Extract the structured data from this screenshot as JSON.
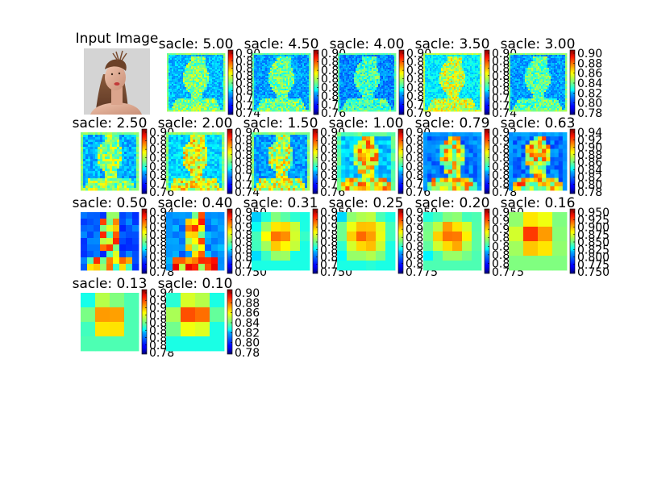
{
  "figure": {
    "input_title": "Input Image",
    "input_subject": "portrait photo of a woman with hair tied up, looking upward"
  },
  "chart_data": {
    "type": "heatmap",
    "colormap": "jet",
    "background": "#ffffff",
    "panels": [
      {
        "title": "sacle: 5.00",
        "colorbar_ticks": [
          "0.90",
          "0.88",
          "0.86",
          "0.84",
          "0.82",
          "0.80",
          "0.78",
          "0.76",
          "0.74"
        ],
        "pattern": "fine",
        "base": 0.25,
        "features": 0.62,
        "frame": 0.55
      },
      {
        "title": "sacle: 4.50",
        "colorbar_ticks": [
          "0.90",
          "0.88",
          "0.86",
          "0.84",
          "0.82",
          "0.80",
          "0.78",
          "0.76"
        ],
        "pattern": "fine",
        "base": 0.22,
        "features": 0.6,
        "frame": 0.5
      },
      {
        "title": "sacle: 4.00",
        "colorbar_ticks": [
          "0.90",
          "0.88",
          "0.86",
          "0.84",
          "0.82",
          "0.80",
          "0.78",
          "0.76"
        ],
        "pattern": "fine",
        "base": 0.2,
        "features": 0.55,
        "frame": 0.5
      },
      {
        "title": "sacle: 3.50",
        "colorbar_ticks": [
          "0.90",
          "0.88",
          "0.86",
          "0.84",
          "0.82",
          "0.80",
          "0.78",
          "0.76",
          "0.74"
        ],
        "pattern": "fine",
        "base": 0.3,
        "features": 0.7,
        "frame": 0.6
      },
      {
        "title": "sacle: 3.00",
        "colorbar_ticks": [
          "0.90",
          "0.88",
          "0.86",
          "0.84",
          "0.82",
          "0.80",
          "0.78"
        ],
        "pattern": "fine",
        "base": 0.22,
        "features": 0.58,
        "frame": 0.55
      },
      {
        "title": "sacle: 2.50",
        "colorbar_ticks": [
          "0.90",
          "0.88",
          "0.86",
          "0.84",
          "0.82",
          "0.80",
          "0.78",
          "0.76"
        ],
        "pattern": "medium",
        "base": 0.24,
        "features": 0.65,
        "frame": 0.55
      },
      {
        "title": "sacle: 2.00",
        "colorbar_ticks": [
          "0.90",
          "0.88",
          "0.86",
          "0.84",
          "0.82",
          "0.80",
          "0.78",
          "0.76",
          "0.74"
        ],
        "pattern": "medium",
        "base": 0.28,
        "features": 0.75,
        "frame": 0.55
      },
      {
        "title": "sacle: 1.50",
        "colorbar_ticks": [
          "0.90",
          "0.88",
          "0.86",
          "0.84",
          "0.82",
          "0.80",
          "0.78",
          "0.76"
        ],
        "pattern": "medium",
        "base": 0.22,
        "features": 0.72,
        "frame": 0.55
      },
      {
        "title": "sacle: 1.00",
        "colorbar_ticks": [
          "0.90",
          "0.88",
          "0.86",
          "0.84",
          "0.82",
          "0.80",
          "0.78",
          "0.76"
        ],
        "pattern": "coarse",
        "base": 0.26,
        "features": 0.82,
        "frame": 0.5
      },
      {
        "title": "sacle: 0.79",
        "colorbar_ticks": [
          "0.92",
          "0.90",
          "0.88",
          "0.86",
          "0.84",
          "0.82",
          "0.80",
          "0.78"
        ],
        "pattern": "coarse",
        "base": 0.18,
        "features": 0.8,
        "frame": 0.3
      },
      {
        "title": "sacle: 0.63",
        "colorbar_ticks": [
          "0.94",
          "0.92",
          "0.90",
          "0.88",
          "0.86",
          "0.84",
          "0.82",
          "0.80",
          "0.78"
        ],
        "pattern": "coarse",
        "base": 0.18,
        "features": 0.85,
        "frame": 0.3
      },
      {
        "title": "sacle: 0.50",
        "colorbar_ticks": [
          "0.94",
          "0.92",
          "0.90",
          "0.88",
          "0.86",
          "0.84",
          "0.82",
          "0.80",
          "0.78"
        ],
        "pattern": "blocky",
        "base": 0.15,
        "features": 0.85,
        "frame": 0.2
      },
      {
        "title": "sacle: 0.40",
        "colorbar_ticks": [
          "0.950",
          "0.925",
          "0.900",
          "0.875",
          "0.850",
          "0.825",
          "0.800",
          "0.775",
          "0.750"
        ],
        "pattern": "blocky",
        "base": 0.2,
        "features": 0.9,
        "frame": 0.3
      },
      {
        "title": "sacle: 0.31",
        "colorbar_ticks": [
          "0.950",
          "0.925",
          "0.900",
          "0.875",
          "0.850",
          "0.825",
          "0.800",
          "0.775",
          "0.750"
        ],
        "pattern": "blurry",
        "base": 0.3,
        "features": 0.85,
        "frame": 0.4
      },
      {
        "title": "sacle: 0.25",
        "colorbar_ticks": [
          "0.950",
          "0.925",
          "0.900",
          "0.875",
          "0.850",
          "0.825",
          "0.800",
          "0.775"
        ],
        "pattern": "blurry",
        "base": 0.35,
        "features": 0.85,
        "frame": 0.4
      },
      {
        "title": "sacle: 0.20",
        "colorbar_ticks": [
          "0.950",
          "0.925",
          "0.900",
          "0.875",
          "0.850",
          "0.825",
          "0.800",
          "0.775"
        ],
        "pattern": "blurry",
        "base": 0.35,
        "features": 0.85,
        "frame": 0.45
      },
      {
        "title": "sacle: 0.16",
        "colorbar_ticks": [
          "0.950",
          "0.925",
          "0.900",
          "0.875",
          "0.850",
          "0.825",
          "0.800",
          "0.775",
          "0.750"
        ],
        "pattern": "smooth",
        "base": 0.4,
        "features": 0.9,
        "frame": 0.5
      },
      {
        "title": "sacle: 0.13",
        "colorbar_ticks": [
          "0.94",
          "0.92",
          "0.90",
          "0.88",
          "0.86",
          "0.84",
          "0.82",
          "0.80",
          "0.78"
        ],
        "pattern": "smooth",
        "base": 0.3,
        "features": 0.88,
        "frame": 0.45
      },
      {
        "title": "sacle: 0.10",
        "colorbar_ticks": [
          "0.90",
          "0.88",
          "0.86",
          "0.84",
          "0.82",
          "0.80",
          "0.78"
        ],
        "pattern": "smooth",
        "base": 0.3,
        "features": 0.9,
        "frame": 0.4
      }
    ]
  }
}
